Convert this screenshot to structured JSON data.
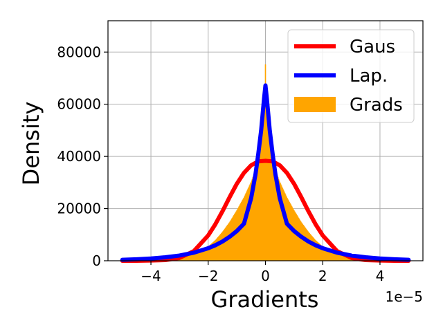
{
  "chart_data": {
    "type": "area",
    "title": "",
    "xlabel": "Gradients",
    "ylabel": "Density",
    "x_offset_label": "1e−5",
    "xlim": [
      -5.5,
      5.5
    ],
    "ylim": [
      0,
      92000
    ],
    "x_ticks": [
      -4,
      -2,
      0,
      2,
      4
    ],
    "x_tick_labels": [
      "−4",
      "−2",
      "0",
      "2",
      "4"
    ],
    "y_ticks": [
      0,
      20000,
      40000,
      60000,
      80000
    ],
    "y_tick_labels": [
      "0",
      "20000",
      "40000",
      "60000",
      "80000"
    ],
    "grid": true,
    "legend_position": "top-right",
    "series": [
      {
        "name": "Gaus",
        "kind": "line",
        "color": "#ff0000",
        "x": [
          -5.0,
          -4.5,
          -4.0,
          -3.5,
          -3.0,
          -2.5,
          -2.0,
          -1.75,
          -1.5,
          -1.25,
          -1.0,
          -0.75,
          -0.5,
          -0.25,
          0.0,
          0.25,
          0.5,
          0.75,
          1.0,
          1.25,
          1.5,
          1.75,
          2.0,
          2.5,
          3.0,
          3.5,
          4.0,
          4.5,
          5.0
        ],
        "y": [
          0,
          0,
          90,
          260,
          1100,
          3700,
          9700,
          14000,
          19000,
          24400,
          29500,
          33700,
          36600,
          38100,
          38300,
          38100,
          36600,
          33700,
          29500,
          24400,
          19000,
          14000,
          9700,
          3700,
          1100,
          260,
          90,
          0,
          0
        ]
      },
      {
        "name": "Lap.",
        "kind": "line",
        "color": "#0000ff",
        "x": [
          -5.0,
          -4.5,
          -4.0,
          -3.5,
          -3.0,
          -2.5,
          -2.0,
          -1.75,
          -1.5,
          -1.25,
          -1.0,
          -0.75,
          -0.5,
          -0.35,
          -0.25,
          -0.15,
          -0.05,
          0.0,
          0.05,
          0.15,
          0.25,
          0.35,
          0.5,
          0.75,
          1.0,
          1.25,
          1.5,
          1.75,
          2.0,
          2.5,
          3.0,
          3.5,
          4.0,
          4.5,
          5.0
        ],
        "y": [
          360,
          560,
          860,
          1320,
          2000,
          3100,
          4800,
          5950,
          7400,
          9200,
          11400,
          14200,
          24000,
          33000,
          41000,
          50000,
          62000,
          67200,
          62000,
          50000,
          41000,
          33000,
          24000,
          14200,
          11400,
          9200,
          7400,
          5950,
          4800,
          3100,
          2000,
          1320,
          860,
          560,
          360
        ]
      },
      {
        "name": "Grads",
        "kind": "histogram",
        "color": "#ffa500",
        "x": [
          -5.0,
          -4.5,
          -4.0,
          -3.5,
          -3.0,
          -2.5,
          -2.0,
          -1.75,
          -1.5,
          -1.25,
          -1.0,
          -0.75,
          -0.5,
          -0.35,
          -0.25,
          -0.15,
          -0.08,
          -0.04,
          0.0,
          0.04,
          0.08,
          0.15,
          0.25,
          0.35,
          0.5,
          0.75,
          1.0,
          1.25,
          1.5,
          1.75,
          2.0,
          2.5,
          3.0,
          3.5,
          4.0,
          4.5,
          5.0
        ],
        "y": [
          300,
          500,
          800,
          1250,
          1900,
          3000,
          5500,
          8000,
          11200,
          15000,
          19500,
          24500,
          30500,
          35000,
          39500,
          47000,
          56000,
          64000,
          79000,
          64000,
          56000,
          47000,
          39500,
          35000,
          30500,
          24500,
          19500,
          15000,
          11200,
          8000,
          5500,
          3000,
          1900,
          1250,
          800,
          500,
          300
        ]
      }
    ]
  }
}
